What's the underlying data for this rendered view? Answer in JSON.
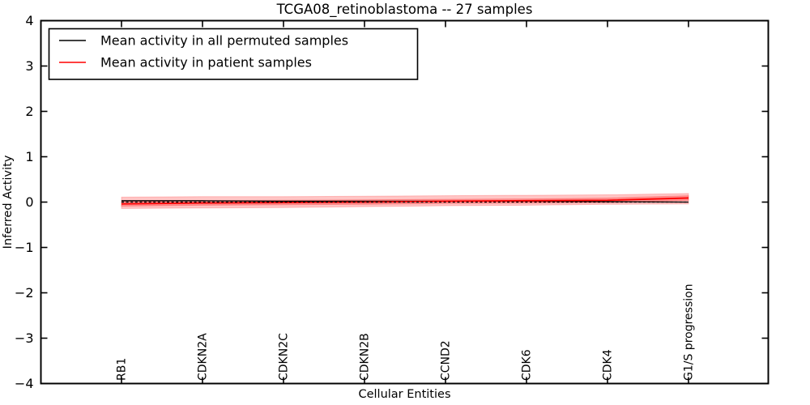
{
  "figure": {
    "background": "#ffffff",
    "frame_color": "#000000"
  },
  "chart_data": {
    "type": "line",
    "title": "TCGA08_retinoblastoma -- 27 samples",
    "xlabel": "Cellular Entities",
    "ylabel": "Inferred Activity",
    "ylim": [
      -4,
      4
    ],
    "yticks": [
      -4,
      -3,
      -2,
      -1,
      0,
      1,
      2,
      3,
      4
    ],
    "grid": false,
    "legend_position": "upper-left",
    "categories": [
      "RB1",
      "CDKN2A",
      "CDKN2C",
      "CDKN2B",
      "CCND2",
      "CDK6",
      "CDK4",
      "G1/S progression"
    ],
    "series": [
      {
        "name": "Mean activity in all permuted samples",
        "color": "#000000",
        "style": "solid",
        "width": 1.3,
        "in_legend": true,
        "values": [
          0.03,
          0.03,
          0.02,
          0.02,
          0.02,
          0.02,
          0.01,
          0.0
        ]
      },
      {
        "name": "Mean activity in patient samples",
        "color": "#ff0000",
        "style": "solid",
        "width": 1.8,
        "in_legend": true,
        "values": [
          -0.04,
          -0.02,
          -0.01,
          0.0,
          0.02,
          0.03,
          0.04,
          0.09
        ]
      },
      {
        "name": "zero-reference-line",
        "color": "#000000",
        "style": "dashed",
        "width": 1.3,
        "in_legend": false,
        "values": [
          0,
          0,
          0,
          0,
          0,
          0,
          0,
          0
        ]
      }
    ],
    "bands": [
      {
        "name": "patient-activity-spread-outer",
        "color": "#ff3030",
        "opacity": 0.28,
        "upper": [
          0.11,
          0.12,
          0.12,
          0.13,
          0.14,
          0.15,
          0.16,
          0.19
        ],
        "lower": [
          -0.14,
          -0.13,
          -0.12,
          -0.1,
          -0.08,
          -0.07,
          -0.05,
          -0.04
        ]
      },
      {
        "name": "patient-activity-spread-inner",
        "color": "#ff3030",
        "opacity": 0.35,
        "upper": [
          0.01,
          0.03,
          0.04,
          0.05,
          0.06,
          0.07,
          0.09,
          0.14
        ],
        "lower": [
          -0.09,
          -0.07,
          -0.06,
          -0.05,
          -0.03,
          -0.02,
          -0.01,
          0.04
        ]
      }
    ]
  }
}
